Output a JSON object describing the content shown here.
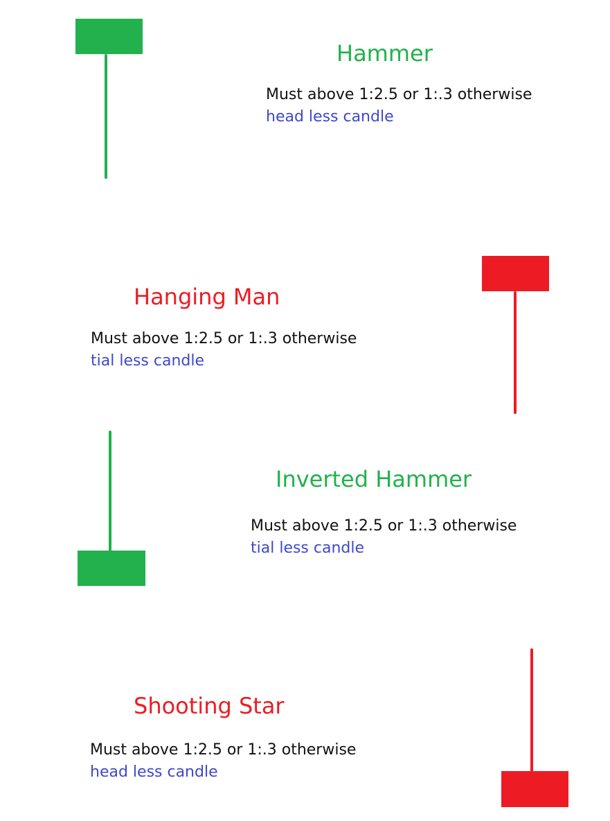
{
  "colors": {
    "green": "#22b14c",
    "red": "#ed1c24",
    "note_blue": "#3f48cc",
    "text": "#111111"
  },
  "patterns": [
    {
      "id": "hammer",
      "title": "Hammer",
      "rule": "Must above 1:2.5 or 1:.3 otherwise",
      "note": "head less candle",
      "color": "green"
    },
    {
      "id": "hanging-man",
      "title": "Hanging Man",
      "rule": "Must above 1:2.5 or 1:.3 otherwise",
      "note": "tial less candle",
      "color": "red"
    },
    {
      "id": "inverted-hammer",
      "title": "Inverted Hammer",
      "rule": "Must above 1:2.5 or 1:.3 otherwise",
      "note": "tial less candle",
      "color": "green"
    },
    {
      "id": "shooting-star",
      "title": "Shooting Star",
      "rule": "Must above 1:2.5 or 1:.3 otherwise",
      "note": "head less candle",
      "color": "red"
    }
  ]
}
